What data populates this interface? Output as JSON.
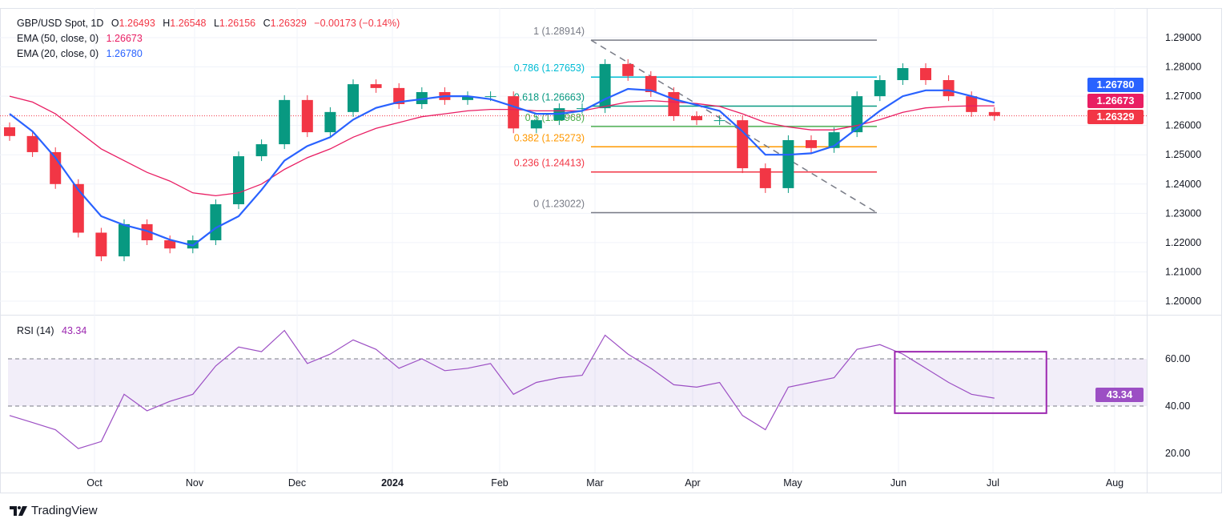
{
  "header": {
    "symbol": "GBP/USD Spot, 1D",
    "open_label": "O",
    "open": "1.26493",
    "high_label": "H",
    "high": "1.26548",
    "low_label": "L",
    "low": "1.26156",
    "close_label": "C",
    "close": "1.26329",
    "change": "−0.00173 (−0.14%)",
    "ema50_label": "EMA (50, close, 0)",
    "ema50_value": "1.26673",
    "ema20_label": "EMA (20, close, 0)",
    "ema20_value": "1.26780",
    "rsi_label": "RSI (14)",
    "rsi_value": "43.34"
  },
  "price_tags": {
    "ema20": "1.26780",
    "ema50": "1.26673",
    "last": "1.26329",
    "rsi": "43.34"
  },
  "colors": {
    "up": "#089981",
    "down": "#f23645",
    "ema20": "#2962ff",
    "ema50": "#e91e63",
    "rsi": "#9c4fc4",
    "rsi_band": "#7e57c2"
  },
  "branding": {
    "logo_text": "TradingView"
  },
  "chart_data": [
    {
      "type": "candlestick",
      "title": "GBP/USD Spot, 1D",
      "ylim": [
        1.195,
        1.2935
      ],
      "y_ticks": [
        "1.29000",
        "1.28000",
        "1.27000",
        "1.26000",
        "1.25000",
        "1.24000",
        "1.23000",
        "1.22000",
        "1.21000",
        "1.20000"
      ],
      "x_ticks": [
        "Oct",
        "Nov",
        "Dec",
        "2024",
        "Feb",
        "Mar",
        "Apr",
        "May",
        "Jun",
        "Jul",
        "Aug"
      ],
      "grid": true,
      "x": [
        "2023-09-04",
        "2023-09-11",
        "2023-09-18",
        "2023-09-25",
        "2023-10-02",
        "2023-10-09",
        "2023-10-16",
        "2023-10-23",
        "2023-10-30",
        "2023-11-06",
        "2023-11-13",
        "2023-11-20",
        "2023-11-27",
        "2023-12-04",
        "2023-12-11",
        "2023-12-18",
        "2023-12-25",
        "2024-01-01",
        "2024-01-08",
        "2024-01-15",
        "2024-01-22",
        "2024-01-29",
        "2024-02-05",
        "2024-02-12",
        "2024-02-19",
        "2024-02-26",
        "2024-03-04",
        "2024-03-11",
        "2024-03-18",
        "2024-03-25",
        "2024-04-01",
        "2024-04-08",
        "2024-04-15",
        "2024-04-22",
        "2024-04-29",
        "2024-05-06",
        "2024-05-13",
        "2024-05-20",
        "2024-05-27",
        "2024-06-03",
        "2024-06-10",
        "2024-06-17",
        "2024-06-24",
        "2024-07-01"
      ],
      "series": [
        {
          "name": "GBP/USD Spot",
          "values": [
            1.2564,
            1.2509,
            1.24,
            1.2234,
            1.2153,
            1.2263,
            1.2208,
            1.218,
            1.2208,
            1.2331,
            1.2495,
            1.2536,
            1.2687,
            1.2577,
            1.2646,
            1.2741,
            1.2728,
            1.2673,
            1.2714,
            1.2687,
            1.27,
            1.27,
            1.259,
            1.2618,
            1.2659,
            1.2659,
            1.281,
            1.2769,
            1.2714,
            1.2632,
            1.2618,
            1.2618,
            1.2454,
            1.2386,
            1.255,
            1.2523,
            1.2577,
            1.27,
            1.2755,
            1.2796,
            1.2755,
            1.27,
            1.2646,
            1.26329
          ]
        },
        {
          "name": "EMA (20, close, 0)",
          "values": [
            1.264,
            1.258,
            1.249,
            1.238,
            1.229,
            1.226,
            1.224,
            1.221,
            1.219,
            1.225,
            1.229,
            1.238,
            1.248,
            1.253,
            1.256,
            1.262,
            1.266,
            1.268,
            1.269,
            1.27,
            1.27,
            1.269,
            1.2665,
            1.264,
            1.264,
            1.265,
            1.269,
            1.2725,
            1.272,
            1.269,
            1.267,
            1.265,
            1.258,
            1.25,
            1.25,
            1.2505,
            1.253,
            1.259,
            1.265,
            1.27,
            1.272,
            1.272,
            1.27,
            1.2678
          ]
        },
        {
          "name": "EMA (50, close, 0)",
          "values": [
            1.27,
            1.268,
            1.264,
            1.258,
            1.252,
            1.248,
            1.244,
            1.241,
            1.237,
            1.236,
            1.237,
            1.24,
            1.245,
            1.249,
            1.252,
            1.256,
            1.259,
            1.261,
            1.263,
            1.264,
            1.265,
            1.2655,
            1.2655,
            1.265,
            1.265,
            1.265,
            1.2665,
            1.268,
            1.2685,
            1.268,
            1.2675,
            1.2665,
            1.264,
            1.261,
            1.2595,
            1.2585,
            1.2585,
            1.26,
            1.262,
            1.2645,
            1.266,
            1.2665,
            1.2667,
            1.26673
          ]
        }
      ],
      "fibonacci": {
        "levels": [
          {
            "ratio": "1",
            "price": "1.28914",
            "label": "1 (1.28914)",
            "color": "#787b86"
          },
          {
            "ratio": "0.786",
            "price": "1.27653",
            "label": "0.786 (1.27653)",
            "color": "#00bcd4"
          },
          {
            "ratio": "0.618",
            "price": "1.26663",
            "label": "0.618 (1.26663)",
            "color": "#089981"
          },
          {
            "ratio": "0.5",
            "price": "1.25968",
            "label": "0.5 (1.25968)",
            "color": "#4caf50"
          },
          {
            "ratio": "0.382",
            "price": "1.25273",
            "label": "0.382 (1.25273)",
            "color": "#ff9800"
          },
          {
            "ratio": "0.236",
            "price": "1.24413",
            "label": "0.236 (1.24413)",
            "color": "#f23645"
          },
          {
            "ratio": "0",
            "price": "1.23022",
            "label": "0 (1.23022)",
            "color": "#787b86"
          }
        ],
        "from_date": "2024-03-01",
        "to_date": "2024-05-28"
      },
      "last_price_line": 1.26329
    },
    {
      "type": "line",
      "title": "RSI (14)",
      "ylim": [
        10,
        75
      ],
      "y_ticks": [
        "60.00",
        "40.00",
        "20.00"
      ],
      "band": [
        40,
        60
      ],
      "series": [
        {
          "name": "RSI (14)",
          "values": [
            36,
            33,
            30,
            22,
            25,
            45,
            38,
            42,
            45,
            57,
            65,
            63,
            72,
            58,
            62,
            68,
            64,
            56,
            60,
            55,
            56,
            58,
            45,
            50,
            52,
            53,
            70,
            62,
            56,
            49,
            48,
            50,
            36,
            30,
            48,
            50,
            52,
            64,
            66,
            62,
            56,
            50,
            45,
            43.34
          ]
        }
      ],
      "highlight_box": {
        "from_date": "2024-06-03",
        "to_date": "2024-07-12",
        "from_value": 37,
        "to_value": 63
      }
    }
  ]
}
